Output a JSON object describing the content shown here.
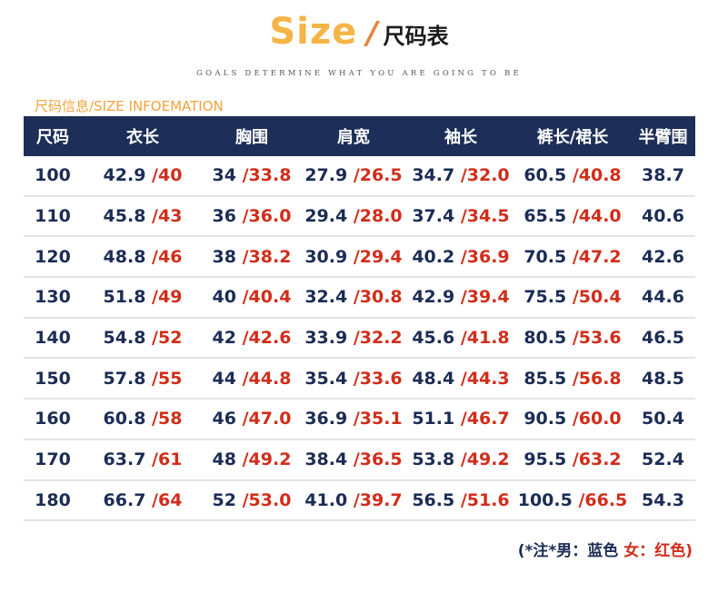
{
  "title": {
    "english": "Size",
    "slash": "/",
    "chinese": "尺码表"
  },
  "tagline": "GOALS DETERMINE WHAT YOU ARE GOING TO BE",
  "section_label": "尺码信息/SIZE INFOEMATION",
  "headers": [
    "尺码",
    "衣长",
    "胸围",
    "肩宽",
    "袖长",
    "裤长/裙长",
    "半臂围"
  ],
  "rows": [
    {
      "size": "100",
      "cells": [
        [
          "42.9",
          " /40"
        ],
        [
          "34",
          " /33.8"
        ],
        [
          "27.9",
          " /26.5"
        ],
        [
          "34.7",
          " /32.0"
        ],
        [
          "60.5",
          " /40.8"
        ]
      ],
      "arm": "38.7"
    },
    {
      "size": "110",
      "cells": [
        [
          "45.8",
          " /43"
        ],
        [
          "36",
          " /36.0"
        ],
        [
          "29.4",
          " /28.0"
        ],
        [
          "37.4",
          " /34.5"
        ],
        [
          "65.5",
          " /44.0"
        ]
      ],
      "arm": "40.6"
    },
    {
      "size": "120",
      "cells": [
        [
          "48.8",
          " /46"
        ],
        [
          "38",
          " /38.2"
        ],
        [
          "30.9",
          " /29.4"
        ],
        [
          "40.2",
          " /36.9"
        ],
        [
          "70.5",
          " /47.2"
        ]
      ],
      "arm": "42.6"
    },
    {
      "size": "130",
      "cells": [
        [
          "51.8",
          " /49"
        ],
        [
          "40",
          " /40.4"
        ],
        [
          "32.4",
          " /30.8"
        ],
        [
          "42.9",
          " /39.4"
        ],
        [
          "75.5",
          " /50.4"
        ]
      ],
      "arm": "44.6"
    },
    {
      "size": "140",
      "cells": [
        [
          "54.8",
          " /52"
        ],
        [
          "42",
          " /42.6"
        ],
        [
          "33.9",
          " /32.2"
        ],
        [
          "45.6",
          " /41.8"
        ],
        [
          "80.5",
          " /53.6"
        ]
      ],
      "arm": "46.5"
    },
    {
      "size": "150",
      "cells": [
        [
          "57.8",
          " /55"
        ],
        [
          "44",
          " /44.8"
        ],
        [
          "35.4",
          " /33.6"
        ],
        [
          "48.4",
          " /44.3"
        ],
        [
          "85.5",
          " /56.8"
        ]
      ],
      "arm": "48.5"
    },
    {
      "size": "160",
      "cells": [
        [
          "60.8",
          " /58"
        ],
        [
          "46",
          " /47.0"
        ],
        [
          "36.9",
          " /35.1"
        ],
        [
          "51.1",
          " /46.7"
        ],
        [
          "90.5",
          " /60.0"
        ]
      ],
      "arm": "50.4"
    },
    {
      "size": "170",
      "cells": [
        [
          "63.7",
          " /61"
        ],
        [
          "48",
          " /49.2"
        ],
        [
          "38.4",
          " /36.5"
        ],
        [
          "53.8",
          " /49.2"
        ],
        [
          "95.5",
          " /63.2"
        ]
      ],
      "arm": "52.4"
    },
    {
      "size": "180",
      "cells": [
        [
          "66.7",
          " /64"
        ],
        [
          "52",
          " /53.0"
        ],
        [
          "41.0",
          " /39.7"
        ],
        [
          "56.5",
          " /51.6"
        ],
        [
          "100.5",
          " /66.5"
        ]
      ],
      "arm": "54.3"
    }
  ],
  "footnote": {
    "male": "(*注*男：蓝色 ",
    "female": "女：红色)"
  },
  "colors": {
    "header_bg": "#1d2f58",
    "male_blue": "#1b2c55",
    "female_red": "#d12d1a",
    "accent_orange": "#f5b445"
  }
}
